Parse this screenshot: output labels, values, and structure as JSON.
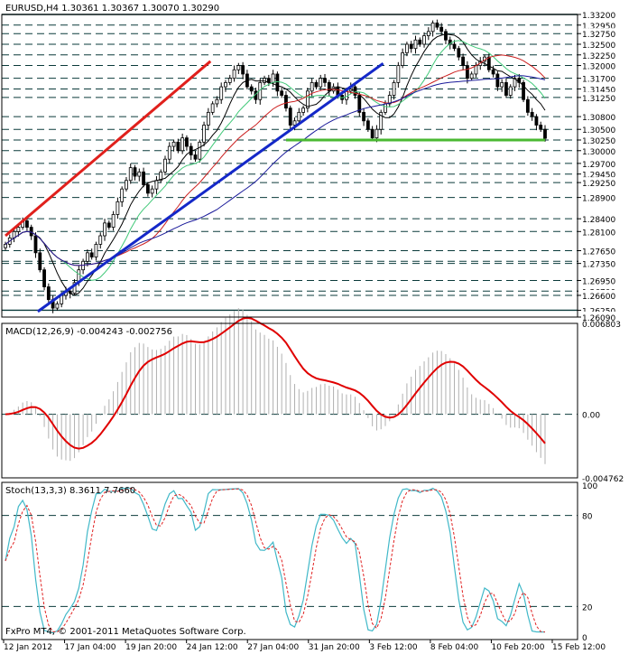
{
  "chart_data": {
    "type": "candlestick",
    "header": "EURUSD,H4  1.30361 1.30367 1.30070 1.30290",
    "footer": "FxPro MT4, © 2001-2011 MetaQuotes Software Corp.",
    "price_axis": {
      "ylim": [
        1.2609,
        1.332
      ],
      "labels": [
        "1.33200",
        "1.32950",
        "1.32750",
        "1.32500",
        "1.32250",
        "1.32000",
        "1.31700",
        "1.31450",
        "1.31250",
        "1.30800",
        "1.30500",
        "1.30250",
        "1.30000",
        "1.29700",
        "1.29450",
        "1.29250",
        "1.28900",
        "1.28400",
        "1.28100",
        "1.27650",
        "1.27400",
        "1.27350",
        "1.26950",
        "1.26700",
        "1.26600",
        "1.26250",
        "1.26090"
      ],
      "dashed_levels": [
        1.332,
        1.3295,
        1.3275,
        1.325,
        1.3225,
        1.32,
        1.317,
        1.3145,
        1.3125,
        1.308,
        1.305,
        1.3025,
        1.3,
        1.297,
        1.2945,
        1.2925,
        1.289,
        1.284,
        1.281,
        1.2765,
        1.274,
        1.2735,
        1.2695,
        1.267,
        1.266,
        1.2625,
        1.2609
      ],
      "bold_levels": [
        1.332,
        1.2625
      ]
    },
    "x_axis": {
      "labels": [
        "12 Jan 2012",
        "17 Jan 04:00",
        "19 Jan 20:00",
        "24 Jan 12:00",
        "27 Jan 04:00",
        "31 Jan 20:00",
        "3 Feb 12:00",
        "8 Feb 04:00",
        "10 Feb 20:00",
        "15 Feb 12:00"
      ]
    },
    "candles_close": [
      1.278,
      1.2795,
      1.281,
      1.282,
      1.2835,
      1.282,
      1.28,
      1.276,
      1.272,
      1.268,
      1.265,
      1.263,
      1.264,
      1.266,
      1.267,
      1.2665,
      1.269,
      1.272,
      1.274,
      1.276,
      1.275,
      1.278,
      1.28,
      1.283,
      1.282,
      1.285,
      1.288,
      1.291,
      1.293,
      1.296,
      1.294,
      1.295,
      1.292,
      1.29,
      1.291,
      1.293,
      1.295,
      1.298,
      1.301,
      1.302,
      1.3,
      1.303,
      1.301,
      1.299,
      1.298,
      1.302,
      1.306,
      1.309,
      1.311,
      1.312,
      1.315,
      1.316,
      1.317,
      1.319,
      1.32,
      1.318,
      1.315,
      1.314,
      1.312,
      1.316,
      1.317,
      1.316,
      1.318,
      1.314,
      1.313,
      1.31,
      1.306,
      1.307,
      1.309,
      1.31,
      1.314,
      1.316,
      1.315,
      1.317,
      1.316,
      1.314,
      1.315,
      1.313,
      1.312,
      1.314,
      1.315,
      1.313,
      1.309,
      1.307,
      1.305,
      1.303,
      1.305,
      1.309,
      1.311,
      1.313,
      1.316,
      1.32,
      1.323,
      1.325,
      1.324,
      1.326,
      1.325,
      1.327,
      1.328,
      1.33,
      1.329,
      1.328,
      1.326,
      1.325,
      1.324,
      1.322,
      1.32,
      1.317,
      1.318,
      1.32,
      1.321,
      1.322,
      1.319,
      1.318,
      1.315,
      1.316,
      1.313,
      1.315,
      1.317,
      1.316,
      1.312,
      1.309,
      1.308,
      1.306,
      1.305,
      1.3029
    ],
    "trendlines": [
      {
        "color": "#e0201c",
        "from": [
          0.0,
          1.28
        ],
        "to": [
          0.38,
          1.321
        ]
      },
      {
        "color": "#1428c8",
        "from": [
          0.06,
          1.2622
        ],
        "to": [
          0.7,
          1.3205
        ]
      },
      {
        "color": "#4ab832",
        "from": [
          0.52,
          1.3025
        ],
        "to": [
          1.0,
          1.3025
        ]
      }
    ],
    "macd": {
      "label": "MACD(12,26,9) -0.004243 -0.002756",
      "ylim": [
        -0.00476,
        0.0068
      ],
      "tick_labels": [
        "0.006803",
        "0.00",
        "-0.004762"
      ],
      "signal_color": "#e00000"
    },
    "stochastic": {
      "label": "Stoch(13,3,3) 8.3611 7.7660",
      "ylim": [
        0,
        100
      ],
      "tick_labels": [
        "100",
        "80",
        "20",
        "0"
      ]
    },
    "colors": {
      "grid": "#0a3a3a",
      "candle": "#000000",
      "ma_black": "#000000",
      "ma_red": "#cc2020",
      "ma_blue": "#1a1a9a",
      "ma_green": "#40c878",
      "stoch_main": "#40b8c8",
      "stoch_signal": "#e02020"
    }
  }
}
